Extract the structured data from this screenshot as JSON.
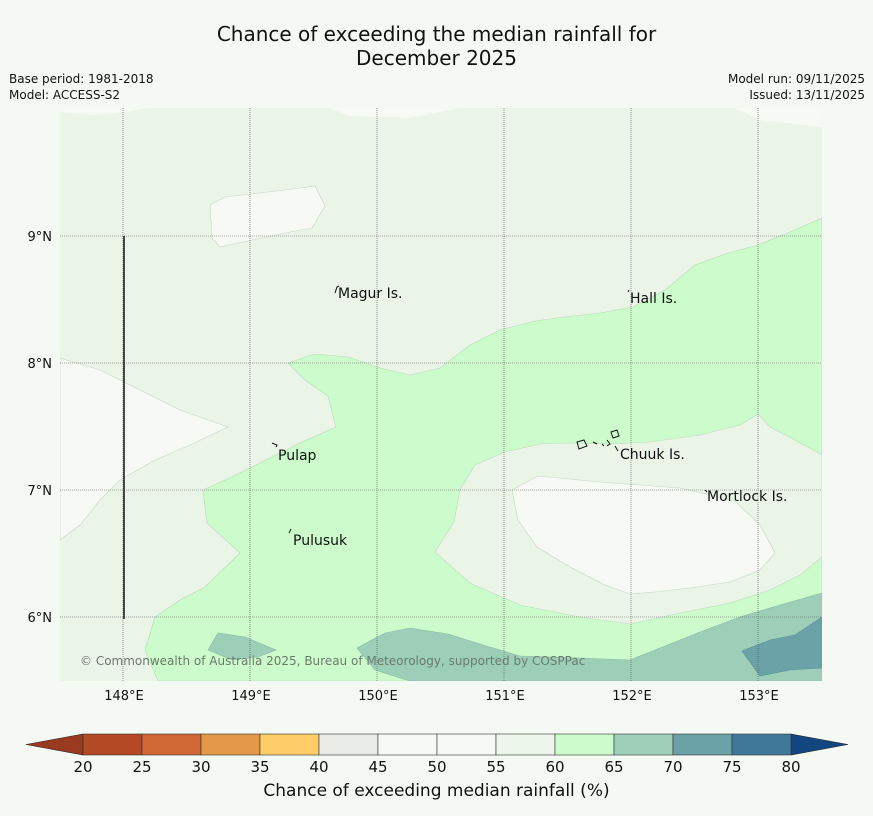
{
  "title_line1": "Chance of exceeding the median rainfall for",
  "title_line2": "December 2025",
  "meta": {
    "base_period": "Base period: 1981-2018",
    "model": "Model: ACCESS-S2",
    "model_run": "Model run: 09/11/2025",
    "issued": "Issued: 13/11/2025"
  },
  "copyright": "© Commonwealth of Australia 2025, Bureau of Meteorology, supported by COSPPac",
  "lat_labels": [
    "9°N",
    "8°N",
    "7°N",
    "6°N"
  ],
  "lon_labels": [
    "148°E",
    "149°E",
    "150°E",
    "151°E",
    "152°E",
    "153°E"
  ],
  "places": [
    "Magur Is.",
    "Hall Is.",
    "Pulap",
    "Chuuk Is.",
    "Mortlock Is.",
    "Pulusuk"
  ],
  "colorbar": {
    "label": "Chance of exceeding median rainfall (%)",
    "ticks": [
      "20",
      "25",
      "30",
      "35",
      "40",
      "45",
      "50",
      "55",
      "60",
      "65",
      "70",
      "75",
      "80"
    ],
    "colors": [
      "#b34a25",
      "#cf6832",
      "#e3984a",
      "#fdcc66",
      "#e9ece6",
      "#f6f9f4",
      "#f6f9f4",
      "#ecf6ea",
      "#ccfccb",
      "#9dcfb8",
      "#6ba2a8",
      "#3f7898"
    ],
    "under_color": "#9a3a20",
    "over_color": "#124680"
  },
  "region_colors": {
    "c55_60": "#eaf5e8",
    "c50_55": "#f6f9f4",
    "c60_65": "#ccfccb",
    "c65_70": "#9dcfb8",
    "c70_75": "#6ba2a8"
  }
}
